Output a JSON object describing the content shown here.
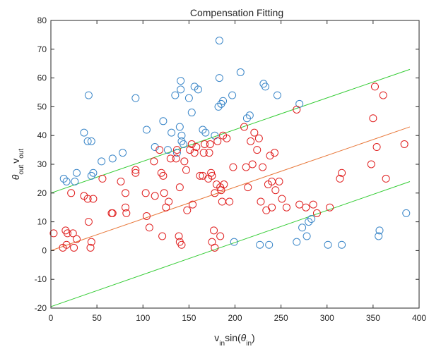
{
  "chart_data": {
    "type": "scatter",
    "title": "Compensation Fitting",
    "xlabel": {
      "base1": "v",
      "sub1": "in",
      "mid": "sin(",
      "theta": "θ",
      "sub2": "in",
      "end": ")"
    },
    "ylabel": {
      "theta": "θ",
      "sub1": "out",
      "base2": "v",
      "sub2": "out"
    },
    "xlim": [
      0,
      400
    ],
    "ylim": [
      -20,
      80
    ],
    "xticks": [
      0,
      50,
      100,
      150,
      200,
      250,
      300,
      350,
      400
    ],
    "yticks": [
      -20,
      -10,
      0,
      10,
      20,
      30,
      40,
      50,
      60,
      70,
      80
    ],
    "grid": false,
    "series": [
      {
        "marker": "circle",
        "color": "#3a86c8",
        "points": [
          [
            14,
            25
          ],
          [
            17,
            24
          ],
          [
            26,
            24
          ],
          [
            28,
            27
          ],
          [
            36,
            41
          ],
          [
            40,
            38
          ],
          [
            41,
            54
          ],
          [
            44,
            38
          ],
          [
            44,
            26
          ],
          [
            46,
            27
          ],
          [
            55,
            31
          ],
          [
            67,
            32
          ],
          [
            78,
            34
          ],
          [
            92,
            53
          ],
          [
            104,
            42
          ],
          [
            113,
            36
          ],
          [
            122,
            45
          ],
          [
            127,
            35
          ],
          [
            131,
            41
          ],
          [
            135,
            54
          ],
          [
            137,
            34
          ],
          [
            141,
            56
          ],
          [
            141,
            59
          ],
          [
            140,
            43
          ],
          [
            142,
            40
          ],
          [
            142,
            38
          ],
          [
            144,
            37
          ],
          [
            150,
            53
          ],
          [
            153,
            48
          ],
          [
            156,
            57
          ],
          [
            160,
            56
          ],
          [
            165,
            42
          ],
          [
            168,
            41
          ],
          [
            178,
            40
          ],
          [
            183,
            73
          ],
          [
            182,
            50
          ],
          [
            185,
            51
          ],
          [
            187,
            52
          ],
          [
            183,
            60
          ],
          [
            197,
            54
          ],
          [
            199,
            3
          ],
          [
            206,
            62
          ],
          [
            213,
            46
          ],
          [
            216,
            47
          ],
          [
            231,
            58
          ],
          [
            233,
            57
          ],
          [
            246,
            54
          ],
          [
            227,
            2
          ],
          [
            237,
            2
          ],
          [
            267,
            3
          ],
          [
            270,
            51
          ],
          [
            273,
            8
          ],
          [
            278,
            5
          ],
          [
            280,
            10
          ],
          [
            283,
            11
          ],
          [
            301,
            2
          ],
          [
            316,
            2
          ],
          [
            356,
            5
          ],
          [
            357,
            7
          ],
          [
            386,
            13
          ]
        ]
      },
      {
        "marker": "circle",
        "color": "#e02020",
        "points": [
          [
            3,
            6
          ],
          [
            13,
            1
          ],
          [
            16,
            7
          ],
          [
            17,
            2
          ],
          [
            18,
            6
          ],
          [
            22,
            20
          ],
          [
            24,
            6
          ],
          [
            25,
            1
          ],
          [
            28,
            4
          ],
          [
            36,
            19
          ],
          [
            40,
            18
          ],
          [
            41,
            10
          ],
          [
            43,
            1
          ],
          [
            44,
            3
          ],
          [
            46,
            18
          ],
          [
            56,
            25
          ],
          [
            66,
            13
          ],
          [
            67,
            13
          ],
          [
            76,
            24
          ],
          [
            81,
            20
          ],
          [
            81,
            15
          ],
          [
            82,
            13
          ],
          [
            92,
            28
          ],
          [
            92,
            27
          ],
          [
            103,
            20
          ],
          [
            104,
            12
          ],
          [
            107,
            8
          ],
          [
            112,
            31
          ],
          [
            113,
            19
          ],
          [
            118,
            35
          ],
          [
            120,
            27
          ],
          [
            122,
            26
          ],
          [
            121,
            5
          ],
          [
            123,
            20
          ],
          [
            125,
            15
          ],
          [
            128,
            17
          ],
          [
            130,
            32
          ],
          [
            136,
            32
          ],
          [
            137,
            35
          ],
          [
            139,
            5
          ],
          [
            140,
            22
          ],
          [
            140,
            3
          ],
          [
            142,
            2
          ],
          [
            145,
            31
          ],
          [
            147,
            28
          ],
          [
            148,
            14
          ],
          [
            151,
            35
          ],
          [
            153,
            37
          ],
          [
            154,
            16
          ],
          [
            156,
            34
          ],
          [
            158,
            36
          ],
          [
            162,
            26
          ],
          [
            165,
            26
          ],
          [
            166,
            34
          ],
          [
            167,
            37
          ],
          [
            171,
            25
          ],
          [
            172,
            34
          ],
          [
            173,
            37
          ],
          [
            174,
            27
          ],
          [
            175,
            26
          ],
          [
            175,
            3
          ],
          [
            177,
            7
          ],
          [
            178,
            1
          ],
          [
            178,
            20
          ],
          [
            180,
            23
          ],
          [
            181,
            38
          ],
          [
            184,
            5
          ],
          [
            184,
            22
          ],
          [
            185,
            21
          ],
          [
            186,
            17
          ],
          [
            187,
            40
          ],
          [
            188,
            23
          ],
          [
            191,
            39
          ],
          [
            194,
            17
          ],
          [
            198,
            29
          ],
          [
            210,
            43
          ],
          [
            212,
            29
          ],
          [
            214,
            22
          ],
          [
            217,
            38
          ],
          [
            219,
            30
          ],
          [
            221,
            41
          ],
          [
            224,
            35
          ],
          [
            226,
            39
          ],
          [
            228,
            17
          ],
          [
            230,
            29
          ],
          [
            234,
            14
          ],
          [
            236,
            23
          ],
          [
            238,
            33
          ],
          [
            240,
            15
          ],
          [
            240,
            24
          ],
          [
            243,
            34
          ],
          [
            244,
            21
          ],
          [
            248,
            24
          ],
          [
            251,
            18
          ],
          [
            256,
            15
          ],
          [
            267,
            49
          ],
          [
            270,
            16
          ],
          [
            277,
            15
          ],
          [
            285,
            16
          ],
          [
            289,
            13
          ],
          [
            303,
            15
          ],
          [
            314,
            25
          ],
          [
            316,
            27
          ],
          [
            348,
            30
          ],
          [
            350,
            46
          ],
          [
            352,
            57
          ],
          [
            354,
            36
          ],
          [
            361,
            54
          ],
          [
            364,
            25
          ],
          [
            384,
            37
          ]
        ]
      }
    ],
    "lines": [
      {
        "color": "#33cc33",
        "from": [
          0,
          20
        ],
        "to": [
          390,
          63
        ]
      },
      {
        "color": "#e8783a",
        "from": [
          0,
          0
        ],
        "to": [
          390,
          43
        ]
      },
      {
        "color": "#33cc33",
        "from": [
          0,
          -19.5
        ],
        "to": [
          390,
          24
        ]
      }
    ]
  }
}
